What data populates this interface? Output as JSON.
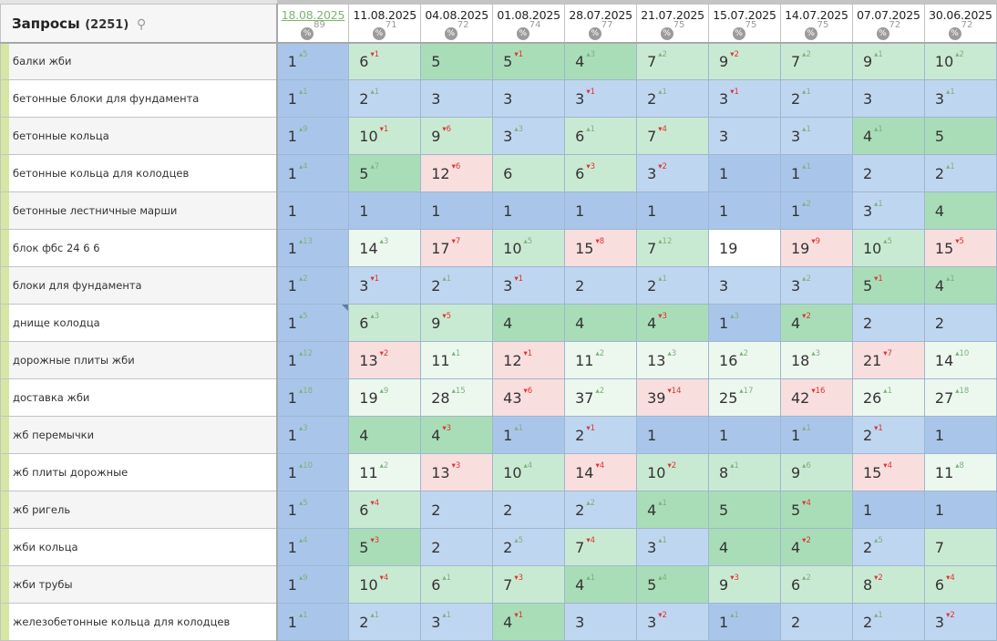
{
  "header": {
    "title": "Запросы",
    "count": "(2251)",
    "search_icon": "search-icon"
  },
  "dates": [
    {
      "date": "18.08.2025",
      "pct": "89",
      "active": true
    },
    {
      "date": "11.08.2025",
      "pct": "71"
    },
    {
      "date": "04.08.2025",
      "pct": "72"
    },
    {
      "date": "01.08.2025",
      "pct": "74"
    },
    {
      "date": "28.07.2025",
      "pct": "77"
    },
    {
      "date": "21.07.2025",
      "pct": "75"
    },
    {
      "date": "15.07.2025",
      "pct": "75"
    },
    {
      "date": "14.07.2025",
      "pct": "75"
    },
    {
      "date": "07.07.2025",
      "pct": "72"
    },
    {
      "date": "30.06.2025",
      "pct": "72"
    }
  ],
  "pct_icon_label": "%",
  "colors": {
    "top1": "#a9c6ea",
    "top3": "#bfd6f0",
    "top5": "#a9ddb7",
    "top10": "#c9ead2",
    "top30": "#ecf7ee",
    "drop": "#f8dedd",
    "up": "#7fb17f",
    "down": "#dd3333"
  },
  "rows": [
    {
      "keyword": "балки жби",
      "cells": [
        [
          1,
          5
        ],
        [
          6,
          -1
        ],
        [
          5,
          0
        ],
        [
          5,
          -1
        ],
        [
          4,
          3
        ],
        [
          7,
          2
        ],
        [
          9,
          -2
        ],
        [
          7,
          2
        ],
        [
          9,
          1
        ],
        [
          10,
          2
        ]
      ]
    },
    {
      "keyword": "бетонные блоки для фундамента",
      "cells": [
        [
          1,
          1
        ],
        [
          2,
          1
        ],
        [
          3,
          0
        ],
        [
          3,
          0
        ],
        [
          3,
          -1
        ],
        [
          2,
          1
        ],
        [
          3,
          -1
        ],
        [
          2,
          1
        ],
        [
          3,
          0
        ],
        [
          3,
          1
        ]
      ]
    },
    {
      "keyword": "бетонные кольца",
      "cells": [
        [
          1,
          9
        ],
        [
          10,
          -1
        ],
        [
          9,
          -6
        ],
        [
          3,
          3
        ],
        [
          6,
          1
        ],
        [
          7,
          -4
        ],
        [
          3,
          0
        ],
        [
          3,
          1
        ],
        [
          4,
          1
        ],
        [
          5,
          0
        ]
      ]
    },
    {
      "keyword": "бетонные кольца для колодцев",
      "cells": [
        [
          1,
          4
        ],
        [
          5,
          7
        ],
        [
          12,
          -6
        ],
        [
          6,
          0
        ],
        [
          6,
          -3
        ],
        [
          3,
          -2
        ],
        [
          1,
          0
        ],
        [
          1,
          1
        ],
        [
          2,
          0
        ],
        [
          2,
          1
        ]
      ]
    },
    {
      "keyword": "бетонные лестничные марши",
      "cells": [
        [
          1,
          0
        ],
        [
          1,
          0
        ],
        [
          1,
          0
        ],
        [
          1,
          0
        ],
        [
          1,
          0
        ],
        [
          1,
          0
        ],
        [
          1,
          0
        ],
        [
          1,
          2
        ],
        [
          3,
          1
        ],
        [
          4,
          0
        ]
      ]
    },
    {
      "keyword": "блок фбс 24 6 6",
      "cells": [
        [
          1,
          13
        ],
        [
          14,
          3
        ],
        [
          17,
          -7
        ],
        [
          10,
          5
        ],
        [
          15,
          -8
        ],
        [
          7,
          12
        ],
        [
          19,
          0
        ],
        [
          19,
          -9
        ],
        [
          10,
          5
        ],
        [
          15,
          -5
        ]
      ]
    },
    {
      "keyword": "блоки для фундамента",
      "cells": [
        [
          1,
          2
        ],
        [
          3,
          -1
        ],
        [
          2,
          1
        ],
        [
          3,
          -1
        ],
        [
          2,
          0
        ],
        [
          2,
          1
        ],
        [
          3,
          0
        ],
        [
          3,
          2
        ],
        [
          5,
          -1
        ],
        [
          4,
          1
        ]
      ]
    },
    {
      "keyword": "днище колодца",
      "cells": [
        [
          1,
          5
        ],
        [
          6,
          3
        ],
        [
          9,
          -5
        ],
        [
          4,
          0
        ],
        [
          4,
          0
        ],
        [
          4,
          -3
        ],
        [
          1,
          3
        ],
        [
          4,
          -2
        ],
        [
          2,
          0
        ],
        [
          2,
          0
        ]
      ]
    },
    {
      "keyword": "дорожные плиты жби",
      "cells": [
        [
          1,
          12
        ],
        [
          13,
          -2
        ],
        [
          11,
          1
        ],
        [
          12,
          -1
        ],
        [
          11,
          2
        ],
        [
          13,
          3
        ],
        [
          16,
          2
        ],
        [
          18,
          3
        ],
        [
          21,
          -7
        ],
        [
          14,
          10
        ]
      ]
    },
    {
      "keyword": "доставка жби",
      "cells": [
        [
          1,
          18
        ],
        [
          19,
          9
        ],
        [
          28,
          15
        ],
        [
          43,
          -6
        ],
        [
          37,
          2
        ],
        [
          39,
          -14
        ],
        [
          25,
          17
        ],
        [
          42,
          -16
        ],
        [
          26,
          1
        ],
        [
          27,
          18
        ]
      ]
    },
    {
      "keyword": "жб перемычки",
      "cells": [
        [
          1,
          3
        ],
        [
          4,
          0
        ],
        [
          4,
          -3
        ],
        [
          1,
          1
        ],
        [
          2,
          -1
        ],
        [
          1,
          0
        ],
        [
          1,
          0
        ],
        [
          1,
          1
        ],
        [
          2,
          -1
        ],
        [
          1,
          0
        ]
      ]
    },
    {
      "keyword": "жб плиты дорожные",
      "cells": [
        [
          1,
          10
        ],
        [
          11,
          2
        ],
        [
          13,
          -3
        ],
        [
          10,
          4
        ],
        [
          14,
          -4
        ],
        [
          10,
          -2
        ],
        [
          8,
          1
        ],
        [
          9,
          6
        ],
        [
          15,
          -4
        ],
        [
          11,
          8
        ]
      ]
    },
    {
      "keyword": "жб ригель",
      "cells": [
        [
          1,
          5
        ],
        [
          6,
          -4
        ],
        [
          2,
          0
        ],
        [
          2,
          0
        ],
        [
          2,
          2
        ],
        [
          4,
          1
        ],
        [
          5,
          0
        ],
        [
          5,
          -4
        ],
        [
          1,
          0
        ],
        [
          1,
          0
        ]
      ]
    },
    {
      "keyword": "жби кольца",
      "cells": [
        [
          1,
          4
        ],
        [
          5,
          -3
        ],
        [
          2,
          0
        ],
        [
          2,
          5
        ],
        [
          7,
          -4
        ],
        [
          3,
          1
        ],
        [
          4,
          0
        ],
        [
          4,
          -2
        ],
        [
          2,
          5
        ],
        [
          7,
          0
        ]
      ]
    },
    {
      "keyword": "жби трубы",
      "cells": [
        [
          1,
          9
        ],
        [
          10,
          -4
        ],
        [
          6,
          1
        ],
        [
          7,
          -3
        ],
        [
          4,
          1
        ],
        [
          5,
          4
        ],
        [
          9,
          -3
        ],
        [
          6,
          2
        ],
        [
          8,
          -2
        ],
        [
          6,
          -4
        ]
      ]
    },
    {
      "keyword": "железобетонные кольца для колодцев",
      "cells": [
        [
          1,
          1
        ],
        [
          2,
          1
        ],
        [
          3,
          1
        ],
        [
          4,
          -1
        ],
        [
          3,
          0
        ],
        [
          3,
          -2
        ],
        [
          1,
          1
        ],
        [
          2,
          0
        ],
        [
          2,
          1
        ],
        [
          3,
          -2
        ]
      ]
    }
  ]
}
